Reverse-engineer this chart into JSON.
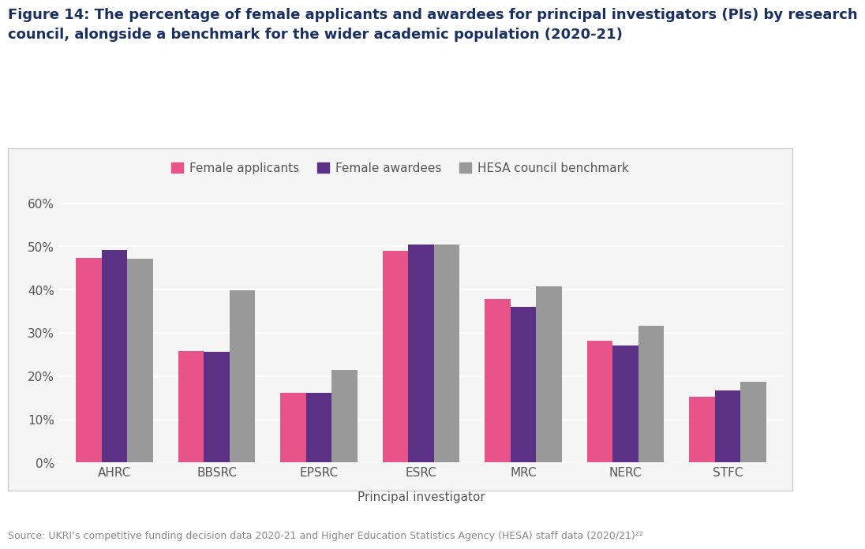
{
  "title_line1": "Figure 14: The percentage of female applicants and awardees for principal investigators (PIs) by research",
  "title_line2": "council, alongside a benchmark for the wider academic population (2020-21)",
  "title_color": "#1a3060",
  "title_fontsize": 13.0,
  "title_bold": true,
  "categories": [
    "AHRC",
    "BBSRC",
    "EPSRC",
    "ESRC",
    "MRC",
    "NERC",
    "STFC"
  ],
  "female_applicants": [
    0.473,
    0.258,
    0.161,
    0.49,
    0.378,
    0.282,
    0.153
  ],
  "female_awardees": [
    0.491,
    0.256,
    0.161,
    0.504,
    0.361,
    0.271,
    0.167
  ],
  "hesa_benchmark": [
    0.472,
    0.399,
    0.214,
    0.504,
    0.407,
    0.317,
    0.186
  ],
  "color_applicants": "#e8538a",
  "color_awardees": "#5b3186",
  "color_benchmark": "#999999",
  "legend_labels": [
    "Female applicants",
    "Female awardees",
    "HESA council benchmark"
  ],
  "xlabel": "Principal investigator",
  "ylim": [
    0,
    0.65
  ],
  "yticks": [
    0.0,
    0.1,
    0.2,
    0.3,
    0.4,
    0.5,
    0.6
  ],
  "ytick_labels": [
    "0%",
    "10%",
    "20%",
    "30%",
    "40%",
    "50%",
    "60%"
  ],
  "source_text": "Source: UKRI’s competitive funding decision data 2020-21 and Higher Education Statistics Agency (HESA) staff data (2020/21)²²",
  "background_color": "#ffffff",
  "plot_bg_color": "#f5f5f5",
  "bar_width": 0.25
}
